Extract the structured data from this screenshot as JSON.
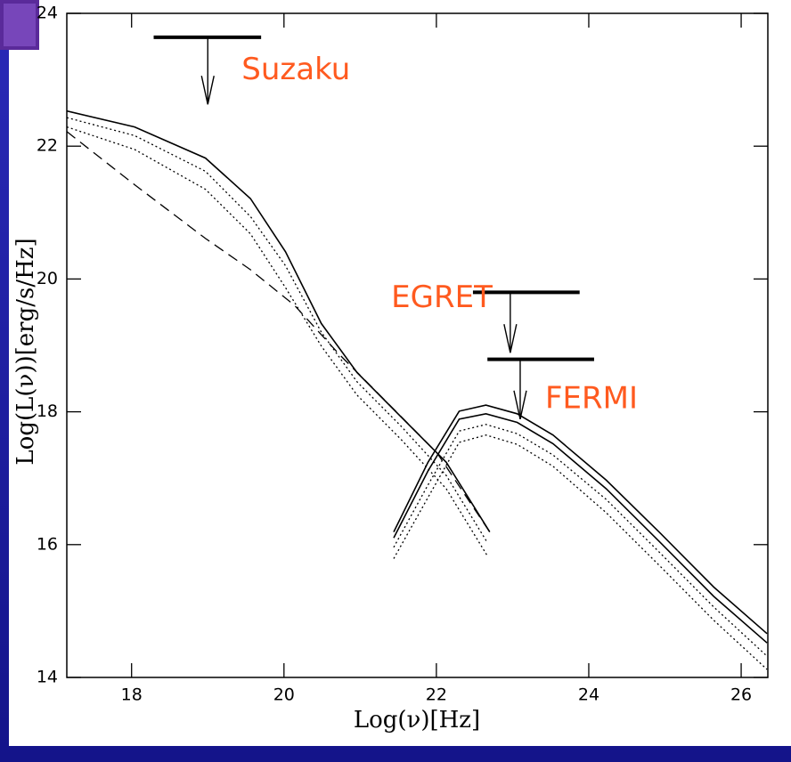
{
  "chart_data": {
    "type": "line",
    "xlabel": "Log(ν)[Hz]",
    "ylabel": "Log(L(ν))[erg/s/Hz]",
    "xlim": [
      17.15,
      26.35
    ],
    "ylim": [
      14,
      24
    ],
    "xticks": [
      18,
      20,
      22,
      24,
      26
    ],
    "yticks": [
      14,
      16,
      18,
      20,
      22,
      24
    ],
    "series": [
      {
        "style": "solid",
        "color": "#000000",
        "x": [
          17.15,
          18.04,
          18.97,
          19.56,
          20.02,
          20.49,
          20.96,
          21.54,
          22.13,
          22.7
        ],
        "values": [
          22.53,
          22.29,
          21.82,
          21.21,
          20.41,
          19.33,
          18.59,
          17.92,
          17.24,
          16.19
        ]
      },
      {
        "style": "dotted",
        "color": "#000000",
        "x": [
          17.15,
          18.04,
          18.97,
          19.56,
          20.02,
          20.49,
          20.96,
          21.54,
          22.13,
          22.67
        ],
        "values": [
          22.43,
          22.16,
          21.62,
          20.94,
          20.2,
          19.2,
          18.45,
          17.78,
          17.04,
          16.03
        ]
      },
      {
        "style": "dotted",
        "color": "#000000",
        "x": [
          17.15,
          18.04,
          18.97,
          19.56,
          20.02,
          20.49,
          20.96,
          21.54,
          22.13,
          22.67
        ],
        "values": [
          22.29,
          21.95,
          21.35,
          20.68,
          19.87,
          18.99,
          18.25,
          17.58,
          16.84,
          15.83
        ]
      },
      {
        "style": "dashed",
        "color": "#000000",
        "x": [
          17.15,
          18.04,
          18.97,
          19.56,
          20.14,
          20.73,
          21.31,
          22.01,
          22.7
        ],
        "values": [
          22.22,
          21.42,
          20.61,
          20.14,
          19.6,
          18.86,
          18.19,
          17.38,
          16.19
        ]
      },
      {
        "style": "solid",
        "color": "#000000",
        "x": [
          21.44,
          21.89,
          22.3,
          22.65,
          23.06,
          23.53,
          24.23,
          24.94,
          25.64,
          26.34
        ],
        "values": [
          16.19,
          17.24,
          18.01,
          18.1,
          17.97,
          17.65,
          16.97,
          16.17,
          15.36,
          14.66
        ]
      },
      {
        "style": "solid",
        "color": "#000000",
        "x": [
          21.44,
          21.89,
          22.3,
          22.65,
          23.06,
          23.53,
          24.23,
          24.94,
          25.64,
          26.34
        ],
        "values": [
          16.1,
          17.11,
          17.89,
          17.97,
          17.84,
          17.52,
          16.84,
          16.03,
          15.22,
          14.52
        ]
      },
      {
        "style": "dotted",
        "color": "#000000",
        "x": [
          21.44,
          21.89,
          22.3,
          22.65,
          23.06,
          23.53,
          24.23,
          24.94,
          25.64,
          26.34
        ],
        "values": [
          15.96,
          16.9,
          17.71,
          17.81,
          17.67,
          17.35,
          16.68,
          15.87,
          15.06,
          14.32
        ]
      },
      {
        "style": "dotted",
        "color": "#000000",
        "x": [
          21.44,
          21.89,
          22.3,
          22.65,
          23.06,
          23.53,
          24.23,
          24.94,
          25.64,
          26.34
        ],
        "values": [
          15.79,
          16.71,
          17.54,
          17.65,
          17.51,
          17.18,
          16.48,
          15.67,
          14.86,
          14.12
        ]
      }
    ],
    "upper_limits": [
      {
        "name": "Suzaku",
        "x": [
          18.29,
          19.7
        ],
        "y": 23.64,
        "arrow_x": 19.0,
        "arrow_to": 22.63
      },
      {
        "name": "EGRET",
        "x": [
          22.48,
          23.88
        ],
        "y": 19.8,
        "arrow_x": 22.97,
        "arrow_to": 18.89
      },
      {
        "name": "FERMI",
        "x": [
          22.67,
          24.07
        ],
        "y": 18.79,
        "arrow_x": 23.1,
        "arrow_to": 17.89
      }
    ],
    "label_color": "#ff5a1f"
  }
}
